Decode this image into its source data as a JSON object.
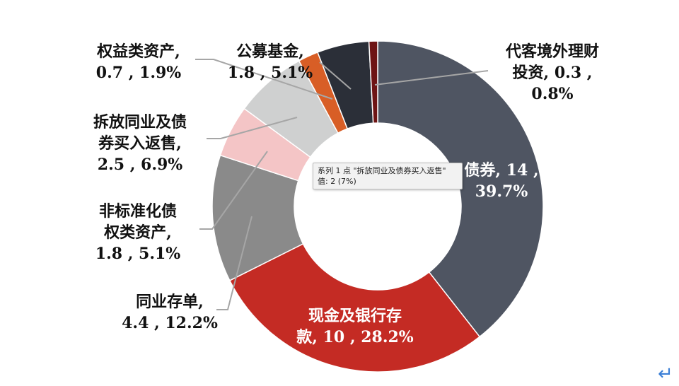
{
  "chart_data": {
    "type": "pie",
    "donut": true,
    "unit": "",
    "slices": [
      {
        "label": "债券",
        "value": 14,
        "percent": "39.7%",
        "display": "债券, 14 ,\n39.7%",
        "color": "#4f5562"
      },
      {
        "label": "现金及银行存款",
        "value": 10,
        "percent": "28.2%",
        "display": "现金及银行存\n款, 10 , 28.2%",
        "color": "#c42b24"
      },
      {
        "label": "同业存单",
        "value": 4.4,
        "percent": "12.2%",
        "display": "同业存单,\n4.4 , 12.2%",
        "color": "#8a8a8a"
      },
      {
        "label": "非标准化债权类资产",
        "value": 1.8,
        "percent": "5.1%",
        "display": "非标准化债\n权类资产,\n1.8 , 5.1%",
        "color": "#f4c5c6"
      },
      {
        "label": "拆放同业及债券买入返售",
        "value": 2.5,
        "percent": "6.9%",
        "display": "拆放同业及债\n券买入返售,\n2.5 , 6.9%",
        "color": "#cfd0d0"
      },
      {
        "label": "权益类资产",
        "value": 0.7,
        "percent": "1.9%",
        "display": "权益类资产,\n0.7 , 1.9%",
        "color": "#d85e26"
      },
      {
        "label": "公募基金",
        "value": 1.8,
        "percent": "5.1%",
        "display": "公募基金,\n1.8 , 5.1%",
        "color": "#2b2f38"
      },
      {
        "label": "代客境外理财投资",
        "value": 0.3,
        "percent": "0.8%",
        "display": "代客境外理财\n投资, 0.3 ,\n0.8%",
        "color": "#6e1414"
      }
    ]
  },
  "tooltip": {
    "line1": "系列 1 点 \"拆放同业及债券买入返售\"",
    "line2": "值: 2  (7%)"
  },
  "icons": {
    "enter": "enter-return-icon"
  }
}
